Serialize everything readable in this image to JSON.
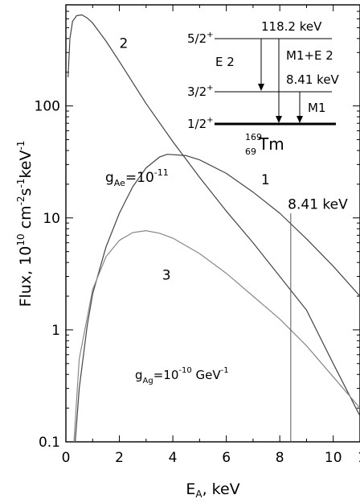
{
  "chart_data": {
    "type": "line",
    "xlabel_main": "E",
    "xlabel_sub": "A",
    "xlabel_rest": ", keV",
    "ylabel_parts": [
      "Flux, 10",
      "10",
      " cm",
      "-2",
      "s",
      "-1",
      "keV",
      "-1"
    ],
    "xlim": [
      0,
      11
    ],
    "ylim": [
      0.1,
      800
    ],
    "yscale": "log",
    "x_ticks": [
      0,
      2,
      4,
      6,
      8,
      10
    ],
    "x_tick_labels": [
      "0",
      "2",
      "4",
      "6",
      "8",
      "10"
    ],
    "y_ticks": [
      0.1,
      1,
      10,
      100
    ],
    "y_tick_labels": [
      "0.1",
      "1",
      "10",
      "100"
    ],
    "series": [
      {
        "name": "1",
        "color": "#444444",
        "x": [
          0.35,
          0.5,
          0.8,
          1.0,
          1.5,
          2.0,
          2.5,
          3.0,
          3.5,
          3.8,
          4.5,
          5.0,
          6.0,
          7.0,
          8.0,
          9.0,
          10.0,
          11.0
        ],
        "y": [
          0.1,
          0.3,
          1.1,
          2.1,
          5.5,
          11,
          19,
          28,
          35,
          37,
          36,
          33,
          25,
          17,
          11,
          6.5,
          3.7,
          2.0
        ]
      },
      {
        "name": "2",
        "color": "#444444",
        "x": [
          0.08,
          0.15,
          0.25,
          0.4,
          0.6,
          0.8,
          1.0,
          1.5,
          2.0,
          3.0,
          4.0,
          5.0,
          6.0,
          7.0,
          8.0,
          9.0,
          10.0,
          11.0
        ],
        "y": [
          180,
          400,
          570,
          640,
          650,
          610,
          550,
          380,
          250,
          105,
          48,
          23,
          11.5,
          6.0,
          3.0,
          1.5,
          0.5,
          0.17
        ]
      },
      {
        "name": "3",
        "color": "#888888",
        "x": [
          0.3,
          0.5,
          1.0,
          1.5,
          2.0,
          2.5,
          3.0,
          3.5,
          4.0,
          5.0,
          6.0,
          7.0,
          8.0,
          9.0,
          10.0,
          11.0
        ],
        "y": [
          0.1,
          0.55,
          2.3,
          4.5,
          6.3,
          7.4,
          7.7,
          7.3,
          6.6,
          4.8,
          3.2,
          2.0,
          1.25,
          0.72,
          0.38,
          0.2
        ]
      }
    ],
    "vline_x": 8.41,
    "annotations": [
      {
        "text": "1",
        "x": 7.3,
        "y": 20
      },
      {
        "text": "2",
        "x": 2.0,
        "y": 330
      },
      {
        "text": "3",
        "x": 3.6,
        "y": 2.8
      },
      {
        "text": "8.41 keV",
        "x": 8.3,
        "y": 12
      }
    ],
    "gAe": {
      "base": "g",
      "sub": "Ae",
      "rest": "=10",
      "sup": "-11"
    },
    "gAg": {
      "base": "g",
      "sub": "Ag",
      "rest": "=10",
      "sup": "-10",
      "unit": " GeV",
      "unit_sup": "-1"
    },
    "level_scheme": {
      "levels": [
        {
          "spin": "5/2",
          "parity": "+",
          "energy": "118.2 keV"
        },
        {
          "spin": "3/2",
          "parity": "+",
          "energy": "8.41 keV"
        },
        {
          "spin": "1/2",
          "parity": "+",
          "energy": ""
        }
      ],
      "transitions": [
        "E 2",
        "M1+E 2",
        "M1"
      ],
      "nucleus": {
        "mass": "169",
        "z": "69",
        "symbol": "Tm"
      }
    }
  }
}
